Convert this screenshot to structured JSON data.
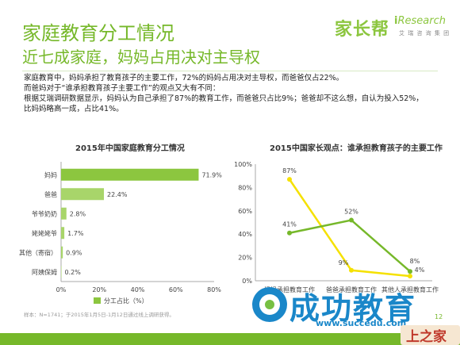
{
  "header": {
    "title": "家庭教育分工情况",
    "subtitle": "近七成家庭，妈妈占用决对主导权",
    "logo_text": "家长帮",
    "logo2_prefix": "i",
    "logo2_text": "Research",
    "logo2_sub": "艾 瑞 咨 询 集 团"
  },
  "body": {
    "line1": "家庭教育中，妈妈承担了教育孩子的主要工作，72%的妈妈占用决对主导权，而爸爸仅占22%。",
    "line2": "而爸妈对于“谁承担教育孩子主要工作”的观点又大有不同：",
    "line3": "根据艾瑞调研数据显示，妈妈认为自己承担了87%的教育工作，而爸爸只占比9%；爸爸却不这么想，自认为投入52%，",
    "line4": "比妈妈略高一成，占比41%。"
  },
  "footer": {
    "source": "样本：N=1741；于2015年1月5日-1月12日通过线上调研获得。",
    "page": "12",
    "watermark": "成功教育",
    "watermark_url": "www.succedu.com",
    "brand2": "上之家"
  },
  "colors": {
    "green": "#76b82a",
    "bar_light": "#a8d56a",
    "yellow": "#f5e100",
    "blue_wm": "#1a87c9"
  },
  "chart_data": [
    {
      "type": "bar",
      "orientation": "horizontal",
      "title": "2015年中国家庭教育分工情况",
      "categories": [
        "妈妈",
        "爸爸",
        "爷爷奶奶",
        "姥姥姥爷",
        "其他（寄宿）",
        "阿姨保姆"
      ],
      "series": [
        {
          "name": "分工占比（%）",
          "values": [
            71.9,
            22.4,
            2.8,
            1.7,
            0.9,
            0.2
          ]
        }
      ],
      "value_labels": [
        "71.9%",
        "22.4%",
        "2.8%",
        "1.7%",
        "0.9%",
        "0.2%"
      ],
      "xlim": [
        0,
        80
      ],
      "xticks": [
        "0%",
        "20%",
        "40%",
        "60%",
        "80%"
      ],
      "legend": "bottom"
    },
    {
      "type": "line",
      "title": "2015中国家长观点：谁承担教育孩子的主要工作",
      "categories": [
        "妈妈承担教育工作",
        "爸爸承担教育工作",
        "其他人承担教育工作"
      ],
      "series": [
        {
          "name": "妈妈观点",
          "color": "#f5e100",
          "values": [
            87,
            9,
            4
          ],
          "labels": [
            "87%",
            "9%",
            "4%"
          ]
        },
        {
          "name": "爸爸观点",
          "color": "#76b82a",
          "values": [
            41,
            52,
            8
          ],
          "labels": [
            "41%",
            "52%",
            "8%"
          ]
        }
      ],
      "ylim": [
        0,
        100
      ],
      "yticks": [
        "0%",
        "20%",
        "40%",
        "60%",
        "80%",
        "100%"
      ],
      "grid": false
    }
  ]
}
